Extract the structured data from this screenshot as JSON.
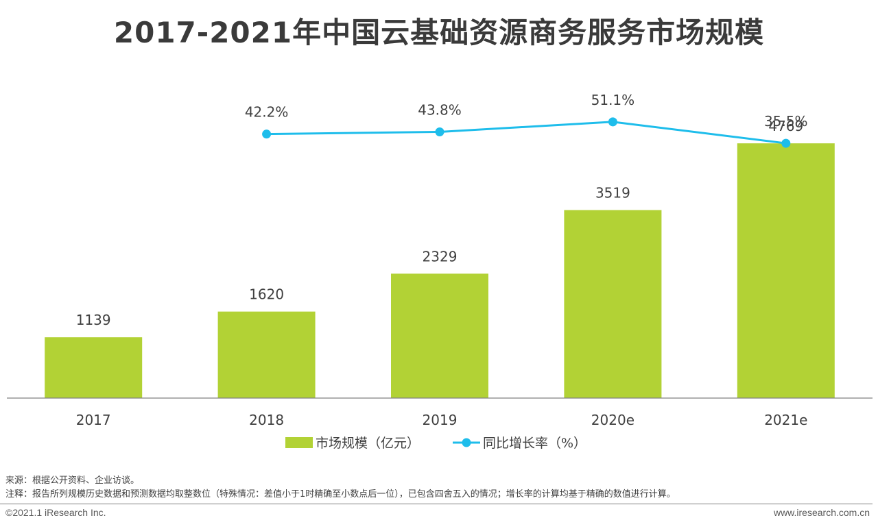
{
  "title": "2017-2021年中国云基础资源商务服务市场规模",
  "chart_data": {
    "type": "bar",
    "categories": [
      "2017",
      "2018",
      "2019",
      "2020e",
      "2021e"
    ],
    "series": [
      {
        "name": "市场规模（亿元）",
        "type": "bar",
        "color": "#b2d235",
        "values": [
          1139,
          1620,
          2329,
          3519,
          4769
        ],
        "labels": [
          "1139",
          "1620",
          "2329",
          "3519",
          "4769"
        ]
      },
      {
        "name": "同比增长率（%）",
        "type": "line",
        "color": "#1ebdeb",
        "values": [
          null,
          42.2,
          43.8,
          51.1,
          35.5
        ],
        "labels": [
          null,
          "42.2%",
          "43.8%",
          "51.1%",
          "35.5%"
        ]
      }
    ],
    "ylim": [
      0,
      5400
    ],
    "ylim_right": [
      -150,
      60
    ],
    "legend_position": "bottom",
    "grid": false
  },
  "footnotes": {
    "source": "来源：根据公开资料、企业访谈。",
    "note": "注释：报告所列规模历史数据和预测数据均取整数位（特殊情况：差值小于1时精确至小数点后一位），已包含四舍五入的情况；增长率的计算均基于精确的数值进行计算。"
  },
  "footer": {
    "copyright": "©2021.1 iResearch Inc.",
    "website": "www.iresearch.com.cn"
  }
}
